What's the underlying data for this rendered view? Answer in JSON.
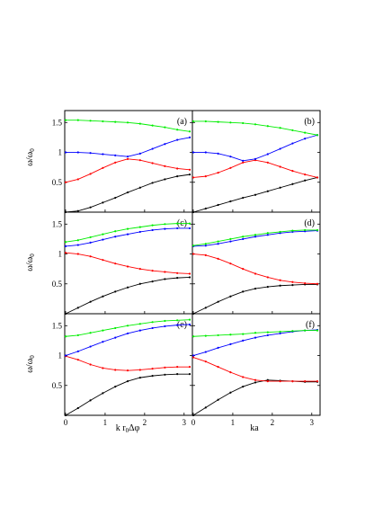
{
  "figure": {
    "ylabel_main": "ω/ω",
    "ylabel_sub": "0",
    "xlabel_left_main": "k r",
    "xlabel_left_sub": "0",
    "xlabel_left_suffix": "Δφ",
    "xlabel_right": "ka"
  },
  "chart_data": [
    {
      "type": "line",
      "panel": "(a)",
      "ylim": [
        0,
        1.7
      ],
      "xlim": [
        0,
        3.14159
      ],
      "yticks": [
        "0.5",
        "1",
        "1.5"
      ],
      "xticks": [],
      "x": [
        0,
        0.314,
        0.628,
        0.942,
        1.257,
        1.571,
        1.885,
        2.199,
        2.513,
        2.827,
        3.142
      ],
      "series": [
        {
          "color": "#000000",
          "values": [
            0.0,
            0.02,
            0.08,
            0.16,
            0.24,
            0.33,
            0.41,
            0.49,
            0.55,
            0.6,
            0.63
          ]
        },
        {
          "color": "#ff0000",
          "values": [
            0.5,
            0.55,
            0.64,
            0.74,
            0.83,
            0.89,
            0.87,
            0.82,
            0.77,
            0.73,
            0.71
          ]
        },
        {
          "color": "#0000ff",
          "values": [
            1.0,
            1.0,
            0.99,
            0.97,
            0.95,
            0.93,
            0.98,
            1.06,
            1.14,
            1.21,
            1.25
          ]
        },
        {
          "color": "#00ee00",
          "values": [
            1.54,
            1.54,
            1.53,
            1.52,
            1.51,
            1.5,
            1.48,
            1.45,
            1.42,
            1.38,
            1.35
          ]
        }
      ]
    },
    {
      "type": "line",
      "panel": "(b)",
      "ylim": [
        0,
        1.7
      ],
      "xlim": [
        0,
        3.14159
      ],
      "yticks": [],
      "xticks": [],
      "x": [
        0,
        0.314,
        0.628,
        0.942,
        1.257,
        1.571,
        1.885,
        2.199,
        2.513,
        2.827,
        3.142
      ],
      "series": [
        {
          "color": "#000000",
          "values": [
            0.0,
            0.06,
            0.12,
            0.18,
            0.24,
            0.29,
            0.35,
            0.41,
            0.47,
            0.53,
            0.58
          ]
        },
        {
          "color": "#ff0000",
          "values": [
            0.58,
            0.6,
            0.66,
            0.74,
            0.83,
            0.87,
            0.83,
            0.76,
            0.69,
            0.63,
            0.58
          ]
        },
        {
          "color": "#0000ff",
          "values": [
            1.0,
            1.0,
            0.98,
            0.93,
            0.86,
            0.89,
            0.97,
            1.06,
            1.15,
            1.23,
            1.29
          ]
        },
        {
          "color": "#00ee00",
          "values": [
            1.52,
            1.52,
            1.51,
            1.5,
            1.49,
            1.47,
            1.44,
            1.41,
            1.37,
            1.33,
            1.29
          ]
        }
      ]
    },
    {
      "type": "line",
      "panel": "(c)",
      "ylim": [
        0,
        1.7
      ],
      "xlim": [
        0,
        3.14159
      ],
      "yticks": [
        "0.5",
        "1",
        "1.5"
      ],
      "xticks": [],
      "x": [
        0,
        0.314,
        0.628,
        0.942,
        1.257,
        1.571,
        1.885,
        2.199,
        2.513,
        2.827,
        3.142
      ],
      "series": [
        {
          "color": "#000000",
          "values": [
            0.0,
            0.1,
            0.2,
            0.29,
            0.37,
            0.44,
            0.5,
            0.54,
            0.58,
            0.6,
            0.61
          ]
        },
        {
          "color": "#ff0000",
          "values": [
            1.02,
            1.0,
            0.96,
            0.9,
            0.84,
            0.79,
            0.75,
            0.72,
            0.7,
            0.68,
            0.67
          ]
        },
        {
          "color": "#0000ff",
          "values": [
            1.13,
            1.15,
            1.19,
            1.24,
            1.29,
            1.33,
            1.37,
            1.4,
            1.42,
            1.43,
            1.43
          ]
        },
        {
          "color": "#00ee00",
          "values": [
            1.2,
            1.23,
            1.28,
            1.33,
            1.38,
            1.42,
            1.45,
            1.48,
            1.5,
            1.51,
            1.51
          ]
        }
      ]
    },
    {
      "type": "line",
      "panel": "(d)",
      "ylim": [
        0,
        1.7
      ],
      "xlim": [
        0,
        3.14159
      ],
      "yticks": [],
      "xticks": [],
      "x": [
        0,
        0.314,
        0.628,
        0.942,
        1.257,
        1.571,
        1.885,
        2.199,
        2.513,
        2.827,
        3.142
      ],
      "series": [
        {
          "color": "#000000",
          "values": [
            0.0,
            0.1,
            0.2,
            0.29,
            0.37,
            0.42,
            0.45,
            0.47,
            0.48,
            0.49,
            0.49
          ]
        },
        {
          "color": "#ff0000",
          "values": [
            1.0,
            0.98,
            0.92,
            0.84,
            0.75,
            0.67,
            0.61,
            0.56,
            0.53,
            0.51,
            0.5
          ]
        },
        {
          "color": "#0000ff",
          "values": [
            1.13,
            1.14,
            1.17,
            1.21,
            1.25,
            1.29,
            1.32,
            1.35,
            1.37,
            1.38,
            1.39
          ]
        },
        {
          "color": "#00ee00",
          "values": [
            1.14,
            1.17,
            1.21,
            1.25,
            1.29,
            1.32,
            1.35,
            1.37,
            1.39,
            1.4,
            1.4
          ]
        }
      ]
    },
    {
      "type": "line",
      "panel": "(e)",
      "ylim": [
        0,
        1.7
      ],
      "xlim": [
        0,
        3.14159
      ],
      "yticks": [
        "0.5",
        "1",
        "1.5"
      ],
      "xticks": [
        "0",
        "1",
        "2",
        "3"
      ],
      "x": [
        0,
        0.314,
        0.628,
        0.942,
        1.257,
        1.571,
        1.885,
        2.199,
        2.513,
        2.827,
        3.142
      ],
      "series": [
        {
          "color": "#000000",
          "values": [
            0.0,
            0.12,
            0.25,
            0.37,
            0.48,
            0.57,
            0.63,
            0.66,
            0.68,
            0.69,
            0.69
          ]
        },
        {
          "color": "#ff0000",
          "values": [
            0.99,
            0.93,
            0.85,
            0.79,
            0.76,
            0.75,
            0.76,
            0.78,
            0.8,
            0.81,
            0.81
          ]
        },
        {
          "color": "#0000ff",
          "values": [
            1.0,
            1.07,
            1.15,
            1.23,
            1.3,
            1.37,
            1.42,
            1.46,
            1.49,
            1.51,
            1.52
          ]
        },
        {
          "color": "#00ee00",
          "values": [
            1.32,
            1.34,
            1.38,
            1.42,
            1.46,
            1.5,
            1.53,
            1.56,
            1.58,
            1.59,
            1.6
          ]
        }
      ]
    },
    {
      "type": "line",
      "panel": "(f)",
      "ylim": [
        0,
        1.7
      ],
      "xlim": [
        0,
        3.14159
      ],
      "yticks": [],
      "xticks": [
        "0",
        "1",
        "2",
        "3"
      ],
      "x": [
        0,
        0.314,
        0.628,
        0.942,
        1.257,
        1.571,
        1.885,
        2.199,
        2.513,
        2.827,
        3.142
      ],
      "series": [
        {
          "color": "#000000",
          "values": [
            0.0,
            0.13,
            0.26,
            0.38,
            0.48,
            0.55,
            0.59,
            0.58,
            0.57,
            0.56,
            0.56
          ]
        },
        {
          "color": "#ff0000",
          "values": [
            0.97,
            0.9,
            0.81,
            0.72,
            0.64,
            0.59,
            0.57,
            0.57,
            0.57,
            0.57,
            0.57
          ]
        },
        {
          "color": "#0000ff",
          "values": [
            1.0,
            1.06,
            1.13,
            1.19,
            1.25,
            1.3,
            1.34,
            1.37,
            1.4,
            1.42,
            1.43
          ]
        },
        {
          "color": "#00ee00",
          "values": [
            1.32,
            1.33,
            1.34,
            1.35,
            1.36,
            1.38,
            1.39,
            1.4,
            1.41,
            1.42,
            1.42
          ]
        }
      ]
    }
  ]
}
